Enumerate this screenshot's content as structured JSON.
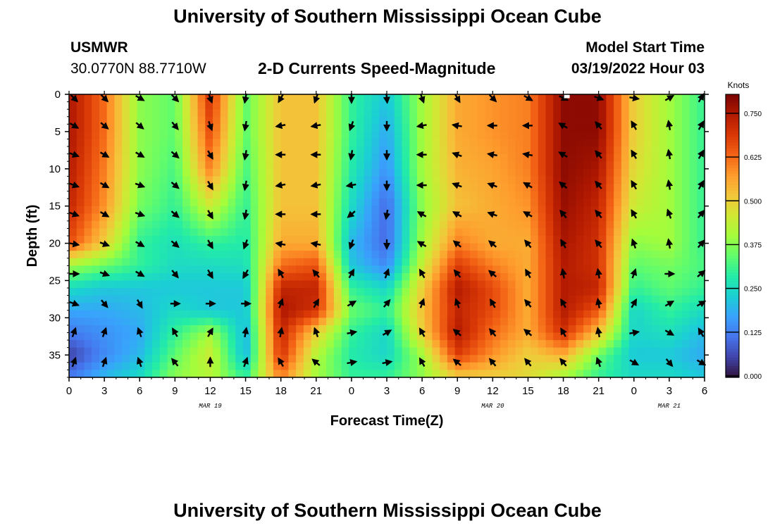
{
  "page": {
    "title": "University of Southern Mississippi Ocean Cube",
    "bottom_title": "University of Southern Mississippi Ocean Cube",
    "station_name": "USMWR",
    "station_coords": "30.0770N  88.7710W",
    "plot_title": "2-D Currents Speed-Magnitude",
    "model_start_label": "Model Start Time",
    "model_start_value": "03/19/2022 Hour 03"
  },
  "chart_data": {
    "type": "heatmap",
    "title": "2-D Currents Speed-Magnitude",
    "xlabel": "Forecast Time(Z)",
    "ylabel": "Depth (ft)",
    "x_ticks": [
      "0",
      "3",
      "6",
      "9",
      "12",
      "15",
      "18",
      "21",
      "0",
      "3",
      "6",
      "9",
      "12",
      "15",
      "18",
      "21",
      "0",
      "3",
      "6"
    ],
    "x_range_hours": [
      0,
      54
    ],
    "date_labels": [
      {
        "text": "MAR 19",
        "hour": 12
      },
      {
        "text": "MAR 20",
        "hour": 36
      },
      {
        "text": "MAR 21",
        "hour": 51
      }
    ],
    "y_ticks": [
      0,
      5,
      10,
      15,
      20,
      25,
      30,
      35
    ],
    "ylim": [
      0,
      38
    ],
    "y_inverted": true,
    "colorbar": {
      "label": "Knots",
      "ticks": [
        "0.750",
        "0.625",
        "0.500",
        "0.375",
        "0.250",
        "0.125",
        "0.000"
      ],
      "range": [
        0,
        0.8
      ],
      "colors": [
        "#30123b",
        "#4145ab",
        "#4675ed",
        "#39a2fc",
        "#1bcfd4",
        "#24eca6",
        "#61fc6c",
        "#a4fc3b",
        "#d1e834",
        "#f3c63a",
        "#fe9b2d",
        "#f36315",
        "#d93806",
        "#b11901",
        "#7a0402"
      ]
    },
    "speed_grid": {
      "depth_ft": [
        0,
        5,
        10,
        15,
        20,
        23,
        26,
        29,
        32,
        35,
        38
      ],
      "hours": [
        0,
        3,
        6,
        9,
        12,
        15,
        18,
        21,
        24,
        27,
        30,
        33,
        36,
        39,
        42,
        45,
        48,
        51,
        54
      ],
      "values": [
        [
          0.75,
          0.62,
          0.38,
          0.34,
          0.7,
          0.34,
          0.52,
          0.52,
          0.3,
          0.22,
          0.4,
          0.55,
          0.58,
          0.6,
          0.78,
          0.78,
          0.5,
          0.4,
          0.3
        ],
        [
          0.75,
          0.62,
          0.38,
          0.34,
          0.66,
          0.34,
          0.52,
          0.52,
          0.3,
          0.18,
          0.4,
          0.55,
          0.58,
          0.6,
          0.78,
          0.78,
          0.5,
          0.4,
          0.3
        ],
        [
          0.74,
          0.6,
          0.38,
          0.32,
          0.6,
          0.32,
          0.52,
          0.52,
          0.28,
          0.15,
          0.4,
          0.54,
          0.56,
          0.6,
          0.78,
          0.75,
          0.48,
          0.4,
          0.3
        ],
        [
          0.72,
          0.58,
          0.36,
          0.3,
          0.45,
          0.3,
          0.52,
          0.52,
          0.25,
          0.1,
          0.38,
          0.52,
          0.55,
          0.58,
          0.77,
          0.72,
          0.45,
          0.4,
          0.3
        ],
        [
          0.66,
          0.5,
          0.3,
          0.26,
          0.3,
          0.28,
          0.55,
          0.55,
          0.2,
          0.1,
          0.4,
          0.6,
          0.55,
          0.55,
          0.75,
          0.7,
          0.38,
          0.4,
          0.3
        ],
        [
          0.4,
          0.35,
          0.3,
          0.25,
          0.25,
          0.26,
          0.62,
          0.65,
          0.22,
          0.14,
          0.44,
          0.68,
          0.6,
          0.55,
          0.74,
          0.7,
          0.34,
          0.36,
          0.32
        ],
        [
          0.25,
          0.22,
          0.22,
          0.22,
          0.22,
          0.22,
          0.72,
          0.72,
          0.3,
          0.24,
          0.5,
          0.74,
          0.66,
          0.55,
          0.74,
          0.72,
          0.3,
          0.34,
          0.3
        ],
        [
          0.18,
          0.18,
          0.2,
          0.25,
          0.22,
          0.22,
          0.75,
          0.7,
          0.35,
          0.3,
          0.52,
          0.72,
          0.66,
          0.55,
          0.74,
          0.65,
          0.24,
          0.3,
          0.25
        ],
        [
          0.12,
          0.15,
          0.18,
          0.3,
          0.4,
          0.2,
          0.72,
          0.5,
          0.3,
          0.24,
          0.5,
          0.74,
          0.62,
          0.55,
          0.7,
          0.52,
          0.24,
          0.26,
          0.2
        ],
        [
          0.05,
          0.14,
          0.2,
          0.34,
          0.45,
          0.2,
          0.7,
          0.42,
          0.28,
          0.24,
          0.4,
          0.68,
          0.58,
          0.5,
          0.55,
          0.35,
          0.22,
          0.22,
          0.18
        ],
        [
          0.12,
          0.2,
          0.25,
          0.38,
          0.42,
          0.3,
          0.6,
          0.4,
          0.3,
          0.3,
          0.38,
          0.5,
          0.5,
          0.48,
          0.4,
          0.3,
          0.25,
          0.25,
          0.22
        ]
      ]
    },
    "vector_grid": {
      "depth_ft": [
        0.5,
        4.2,
        8.1,
        12.2,
        16.1,
        20.1,
        24.1,
        28.1,
        32.0,
        36.0
      ],
      "hours": [
        0,
        3,
        6,
        9,
        12,
        15,
        18,
        21,
        24,
        27,
        30,
        33,
        36,
        39,
        42,
        45,
        48,
        51,
        54
      ],
      "directions_deg": [
        [
          135,
          135,
          120,
          135,
          160,
          190,
          210,
          200,
          180,
          175,
          160,
          150,
          135,
          120,
          115,
          110,
          100,
          60,
          30
        ],
        [
          120,
          130,
          130,
          140,
          160,
          190,
          260,
          260,
          200,
          180,
          260,
          280,
          270,
          270,
          300,
          320,
          330,
          350,
          30
        ],
        [
          110,
          120,
          120,
          130,
          150,
          190,
          270,
          270,
          190,
          180,
          270,
          290,
          280,
          280,
          300,
          320,
          330,
          350,
          30
        ],
        [
          110,
          120,
          110,
          130,
          150,
          190,
          260,
          260,
          260,
          180,
          270,
          290,
          290,
          300,
          310,
          320,
          330,
          350,
          30
        ],
        [
          110,
          120,
          110,
          130,
          150,
          190,
          270,
          270,
          230,
          190,
          300,
          300,
          290,
          300,
          320,
          320,
          330,
          340,
          40
        ],
        [
          100,
          110,
          120,
          130,
          150,
          200,
          280,
          280,
          200,
          180,
          300,
          310,
          310,
          320,
          330,
          320,
          340,
          350,
          40
        ],
        [
          90,
          110,
          120,
          140,
          150,
          210,
          330,
          320,
          30,
          20,
          330,
          320,
          310,
          330,
          350,
          350,
          20,
          90,
          50
        ],
        [
          110,
          140,
          150,
          90,
          90,
          90,
          20,
          30,
          60,
          40,
          20,
          340,
          330,
          320,
          330,
          350,
          30,
          60,
          60
        ],
        [
          20,
          20,
          340,
          330,
          30,
          10,
          10,
          340,
          80,
          60,
          330,
          310,
          320,
          310,
          330,
          350,
          80,
          120,
          330
        ],
        [
          20,
          20,
          340,
          320,
          0,
          20,
          330,
          310,
          80,
          80,
          330,
          310,
          320,
          320,
          320,
          340,
          120,
          140,
          120
        ]
      ]
    },
    "markers": [
      {
        "text": "white surface marker",
        "hour": 42.3,
        "depth_ft": 0
      }
    ]
  }
}
